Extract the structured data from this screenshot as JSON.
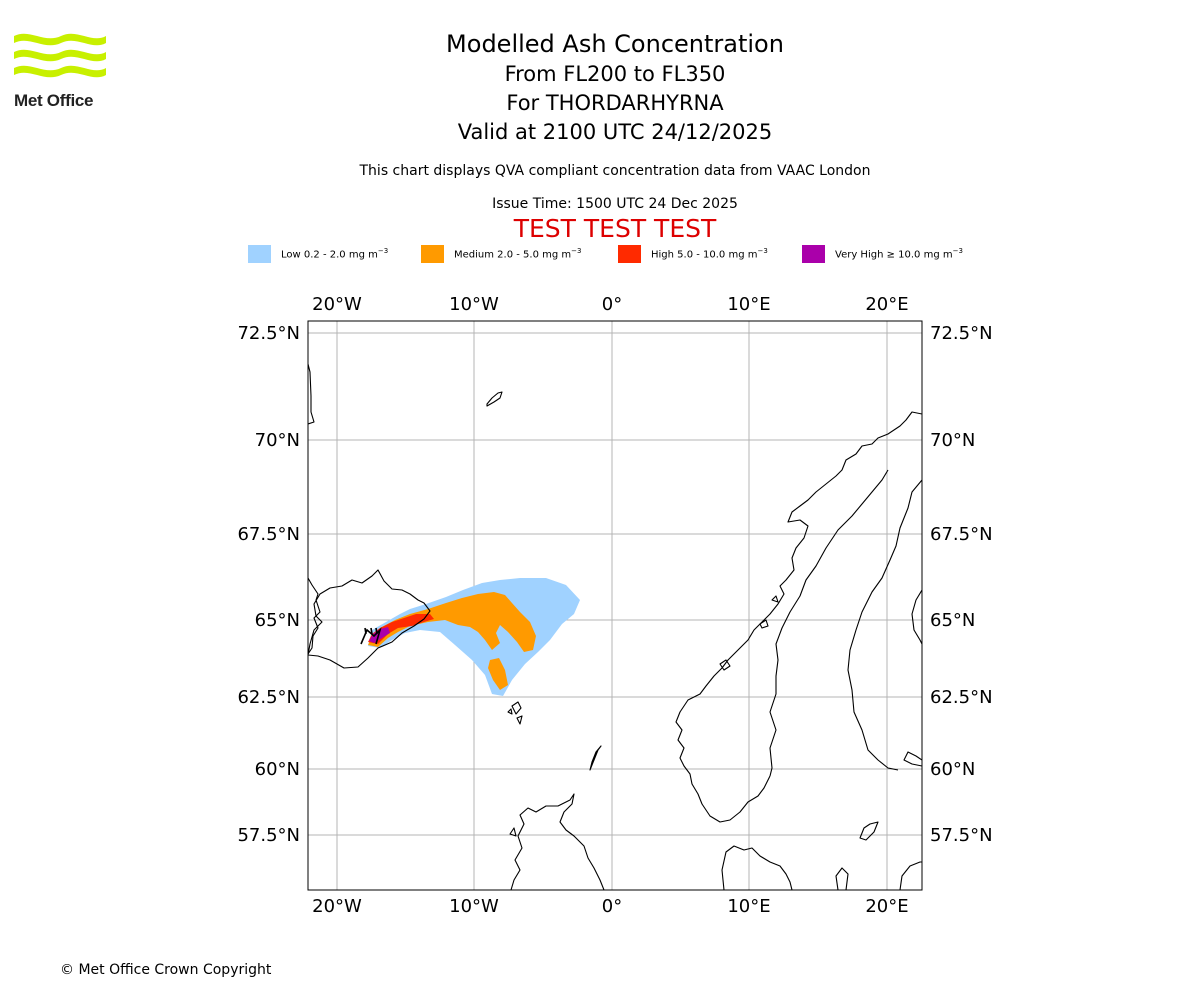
{
  "logo": {
    "text": "Met Office"
  },
  "title": {
    "main": "Modelled Ash Concentration",
    "flight_levels": "From FL200 to FL350",
    "volcano": "For THORDARHYRNA",
    "valid_time": "Valid at 2100 UTC 24/12/2025"
  },
  "info": {
    "compliance": "This chart displays QVA compliant concentration data from VAAC London",
    "issue_time": "Issue Time: 1500 UTC 24 Dec 2025",
    "test_banner": "TEST TEST TEST"
  },
  "legend": [
    {
      "name": "Low",
      "label": "Low 0.2 - 2.0 mg m",
      "color": "#a0d2ff"
    },
    {
      "name": "Medium",
      "label": "Medium 2.0 - 5.0 mg m",
      "color": "#ff9a00"
    },
    {
      "name": "High",
      "label": "High 5.0 - 10.0 mg m",
      "color": "#ff2a00"
    },
    {
      "name": "Very High",
      "label": "Very High ≥ 10.0 mg m",
      "color": "#aa00aa"
    }
  ],
  "legend_unit_exponent": "−3",
  "map": {
    "lon_labels": [
      "20°W",
      "10°W",
      "0°",
      "10°E",
      "20°E"
    ],
    "lat_labels": [
      "72.5°N",
      "70°N",
      "67.5°N",
      "65°N",
      "62.5°N",
      "60°N",
      "57.5°N"
    ],
    "gridline_color": "#b4b4b4"
  },
  "footer": {
    "copyright": "© Met Office Crown Copyright"
  }
}
